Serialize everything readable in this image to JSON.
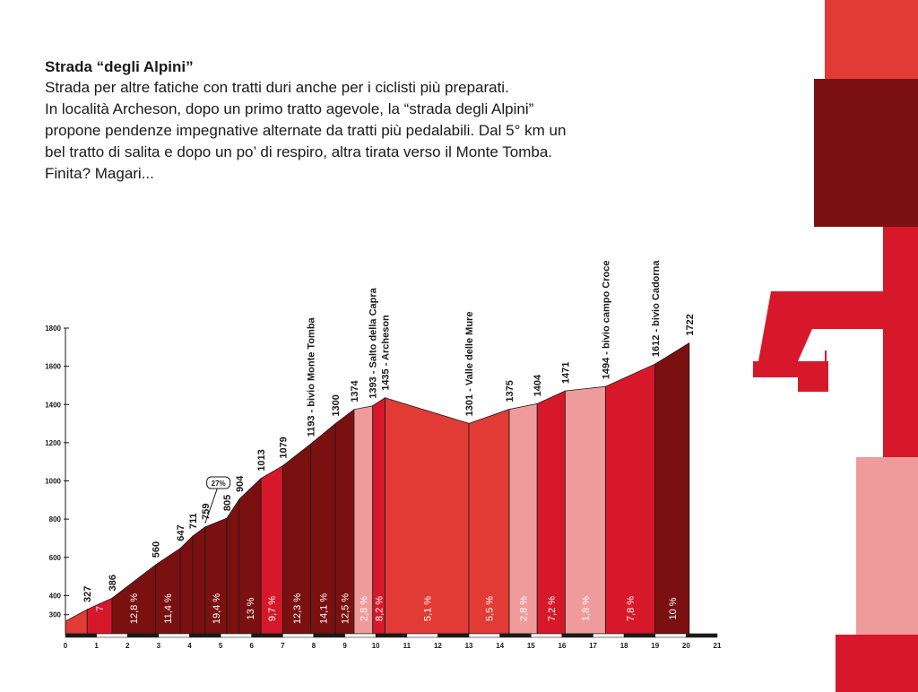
{
  "intro": {
    "title": "Strada “degli Alpini”",
    "body": "Strada per altre fatiche con tratti duri anche per i ciclisti più preparati.\nIn località Archeson, dopo un primo tratto agevole, la “strada degli Alpini”\npropone pendenze impegnative alternate da tratti più pedalabili. Dal 5° km un\nbel tratto di salita e dopo un po’ di respiro, altra tirata verso il Monte Tomba.\nFinita? Magari..."
  },
  "decor": {
    "number_glyph": "4",
    "colors": {
      "red": "#e23b35",
      "dark": "#7b1010",
      "crimson": "#d7182a",
      "pink": "#ef9b9c",
      "ink": "#1a1a1a"
    }
  },
  "chart_data": {
    "type": "area",
    "title": "",
    "xlabel": "",
    "ylabel": "",
    "xlim": [
      0,
      21
    ],
    "ylim": [
      200,
      1800
    ],
    "x_ticks": [
      "0",
      "1",
      "2",
      "3",
      "4",
      "5",
      "6",
      "7",
      "8",
      "9",
      "10",
      "11",
      "12",
      "13",
      "14",
      "15",
      "16",
      "17",
      "18",
      "19",
      "20",
      "21"
    ],
    "y_ticks": [
      "300",
      "400",
      "600",
      "800",
      "1000",
      "1200",
      "1400",
      "1600",
      "1800"
    ],
    "profile": [
      {
        "x": 0,
        "y": 265
      },
      {
        "x": 0.7,
        "y": 327,
        "label": "327"
      },
      {
        "x": 1.5,
        "y": 386,
        "label": "386"
      },
      {
        "x": 2.9,
        "y": 560,
        "label": "560"
      },
      {
        "x": 3.7,
        "y": 647,
        "label": "647"
      },
      {
        "x": 4.1,
        "y": 711,
        "label": "711"
      },
      {
        "x": 4.5,
        "y": 759,
        "label": "759"
      },
      {
        "x": 5.2,
        "y": 805,
        "label": "805"
      },
      {
        "x": 5.6,
        "y": 904,
        "label": "904"
      },
      {
        "x": 6.3,
        "y": 1013,
        "label": "1013"
      },
      {
        "x": 7.0,
        "y": 1079,
        "label": "1079"
      },
      {
        "x": 7.9,
        "y": 1193,
        "label": "1193 - bivio Monte Tomba"
      },
      {
        "x": 8.7,
        "y": 1300,
        "label": "1300"
      },
      {
        "x": 9.3,
        "y": 1374,
        "label": "1374"
      },
      {
        "x": 9.9,
        "y": 1393,
        "label": "1393 - Salto della Capra"
      },
      {
        "x": 10.3,
        "y": 1435,
        "label": "1435 - Archeson"
      },
      {
        "x": 13.0,
        "y": 1301,
        "label": "1301 - Valle delle Mure"
      },
      {
        "x": 14.3,
        "y": 1375,
        "label": "1375"
      },
      {
        "x": 15.2,
        "y": 1404,
        "label": "1404"
      },
      {
        "x": 16.1,
        "y": 1471,
        "label": "1471"
      },
      {
        "x": 17.4,
        "y": 1494,
        "label": "1494 - bivio campo Croce"
      },
      {
        "x": 19.0,
        "y": 1612,
        "label": "1612 - bivio Cadorna"
      },
      {
        "x": 20.1,
        "y": 1722,
        "label": "1722"
      }
    ],
    "segments": [
      {
        "grade": "",
        "color": "#e23b35"
      },
      {
        "grade": "7",
        "color": "#d7182a"
      },
      {
        "grade": "12,8 %",
        "color": "#7b1010"
      },
      {
        "grade": "11,4 %",
        "color": "#7b1010"
      },
      {
        "grade": "",
        "color": "#7b1010"
      },
      {
        "grade": "",
        "color": "#7b1010"
      },
      {
        "grade": "19,4 %",
        "color": "#7b1010"
      },
      {
        "grade": "",
        "color": "#7b1010"
      },
      {
        "grade": "13 %",
        "color": "#7b1010"
      },
      {
        "grade": "9,7 %",
        "color": "#d7182a"
      },
      {
        "grade": "12,3 %",
        "color": "#7b1010"
      },
      {
        "grade": "14,1 %",
        "color": "#7b1010"
      },
      {
        "grade": "12,5 %",
        "color": "#7b1010"
      },
      {
        "grade": "2,8 %",
        "color": "#ef9b9c"
      },
      {
        "grade": "8,2 %",
        "color": "#d7182a"
      },
      {
        "grade": "5,1 %",
        "color": "#e23b35"
      },
      {
        "grade": "5,5 %",
        "color": "#e23b35"
      },
      {
        "grade": "2,8 %",
        "color": "#ef9b9c"
      },
      {
        "grade": "7,2 %",
        "color": "#d7182a"
      },
      {
        "grade": "1,8 %",
        "color": "#ef9b9c"
      },
      {
        "grade": "7,8 %",
        "color": "#d7182a"
      },
      {
        "grade": "10 %",
        "color": "#7b1010"
      }
    ],
    "callout": {
      "text": "27%",
      "x": 4.9,
      "y": 805
    }
  }
}
